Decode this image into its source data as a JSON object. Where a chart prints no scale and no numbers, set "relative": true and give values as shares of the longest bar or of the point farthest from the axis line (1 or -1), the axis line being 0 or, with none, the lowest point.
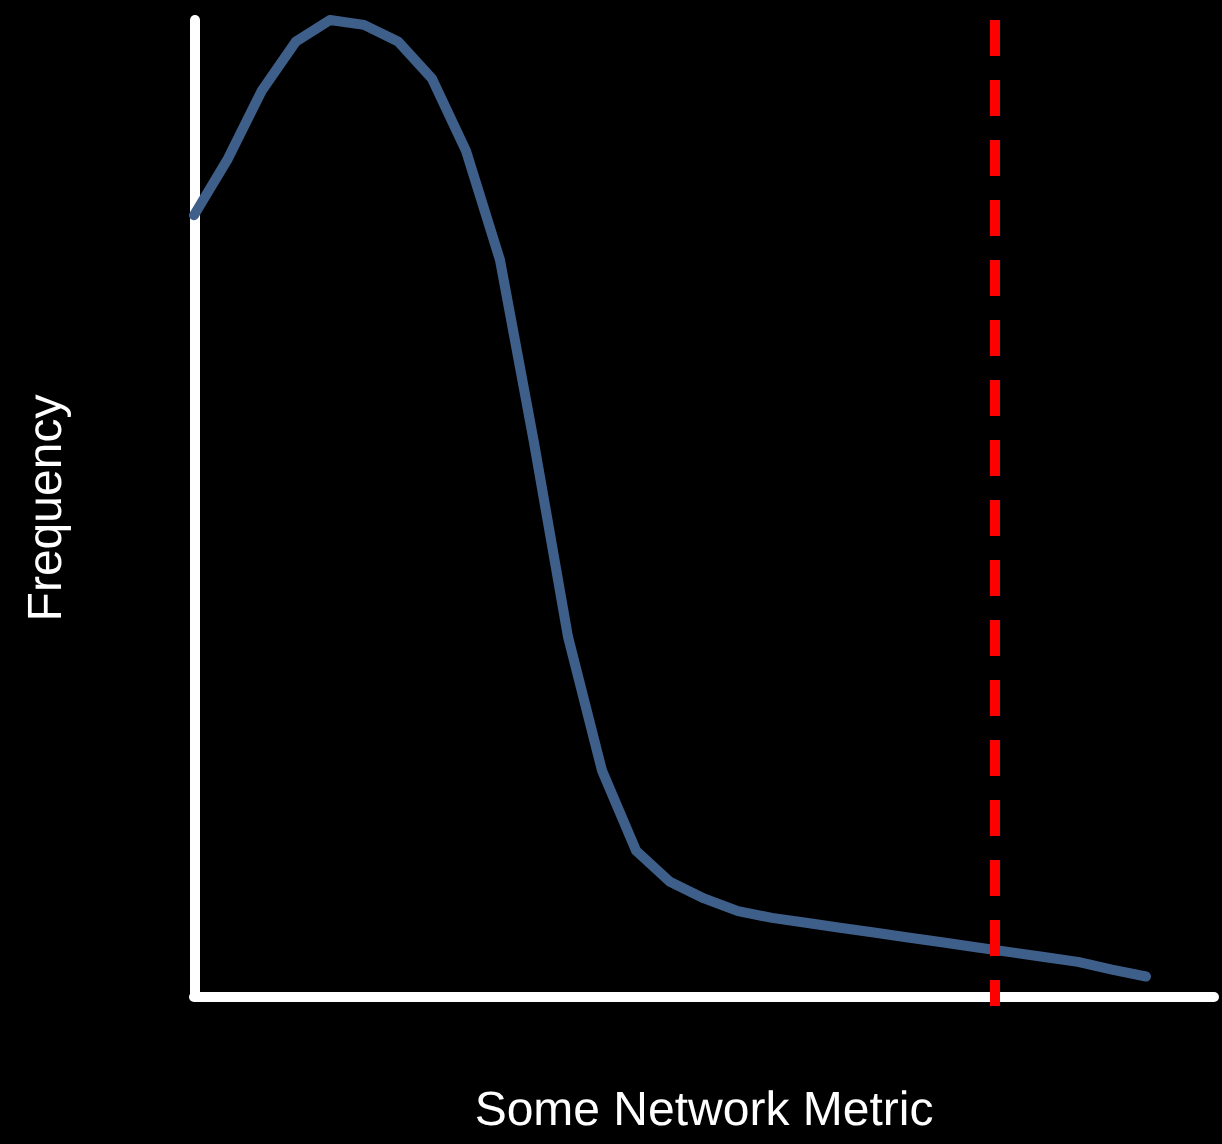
{
  "chart_data": {
    "type": "line",
    "xlabel": "Some Network Metric",
    "ylabel": "Frequency",
    "relative": true,
    "grid": false,
    "marker": "none",
    "line_style": "solid",
    "categories": [
      null,
      null,
      null,
      null,
      null,
      null,
      null,
      null,
      null,
      null,
      null,
      null,
      null,
      null,
      null,
      null,
      null,
      null,
      null,
      null,
      null,
      null,
      null,
      null,
      null,
      null,
      null,
      null,
      null,
      null,
      null
    ],
    "series": [
      {
        "color": "#3e5f8a",
        "values": [
          0.8,
          0.858,
          0.928,
          0.978,
          1,
          0.995,
          0.978,
          0.94,
          0.866,
          0.754,
          0.567,
          0.368,
          0.231,
          0.149,
          0.117,
          0.1,
          0.087,
          0.08,
          0.075,
          0.07,
          0.065,
          0.06,
          0.055,
          0.05,
          0.045,
          0.04,
          0.035,
          0.027,
          0.02,
          null,
          null
        ]
      }
    ]
  }
}
